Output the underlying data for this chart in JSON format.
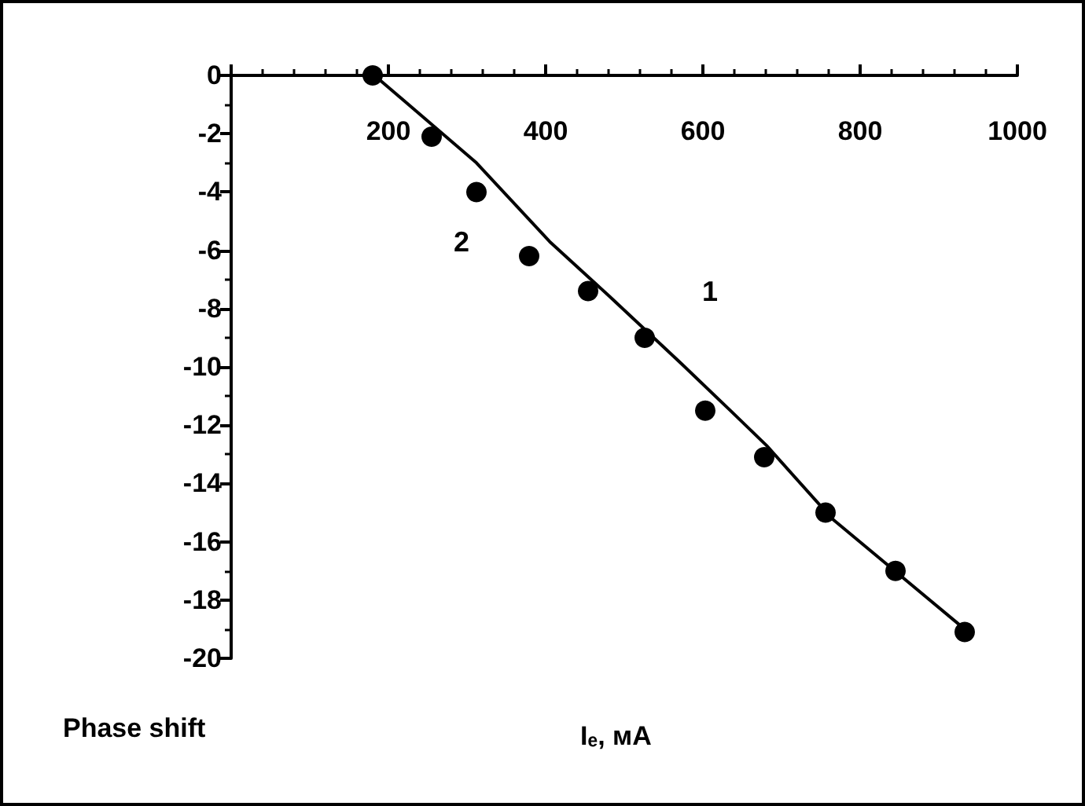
{
  "chart_data": {
    "type": "line",
    "xlabel": "Iₑ, мA",
    "ylabel": "Phase shift",
    "xlim": [
      0,
      1000
    ],
    "xticks": [
      {
        "value": 0,
        "label": null
      },
      200,
      400,
      600,
      800,
      1000
    ],
    "ylim": [
      -20,
      0
    ],
    "yticks": [
      0,
      -2,
      -4,
      -6,
      -8,
      -10,
      -12,
      -14,
      -16,
      -18,
      -20
    ],
    "grid": false,
    "series": [
      {
        "name": "1",
        "color": "#000000",
        "marker": "none",
        "line_style": "solid",
        "x": [
          180,
          191,
          312,
          405,
          482,
          573,
          635,
          681,
          764,
          933
        ],
        "values": [
          0,
          -0.2,
          -3.0,
          -5.7,
          -7.6,
          -9.9,
          -11.5,
          -12.7,
          -15.2,
          -19.0
        ]
      },
      {
        "name": "2",
        "type": "scatter",
        "color": "#000000",
        "marker": "circle",
        "x": [
          180,
          255,
          312,
          379,
          454,
          526,
          603,
          678,
          756,
          845,
          933
        ],
        "values": [
          0,
          -2.1,
          -4.0,
          -6.2,
          -7.4,
          -9.0,
          -11.5,
          -13.1,
          -15.0,
          -17.0,
          -19.1
        ]
      }
    ]
  }
}
